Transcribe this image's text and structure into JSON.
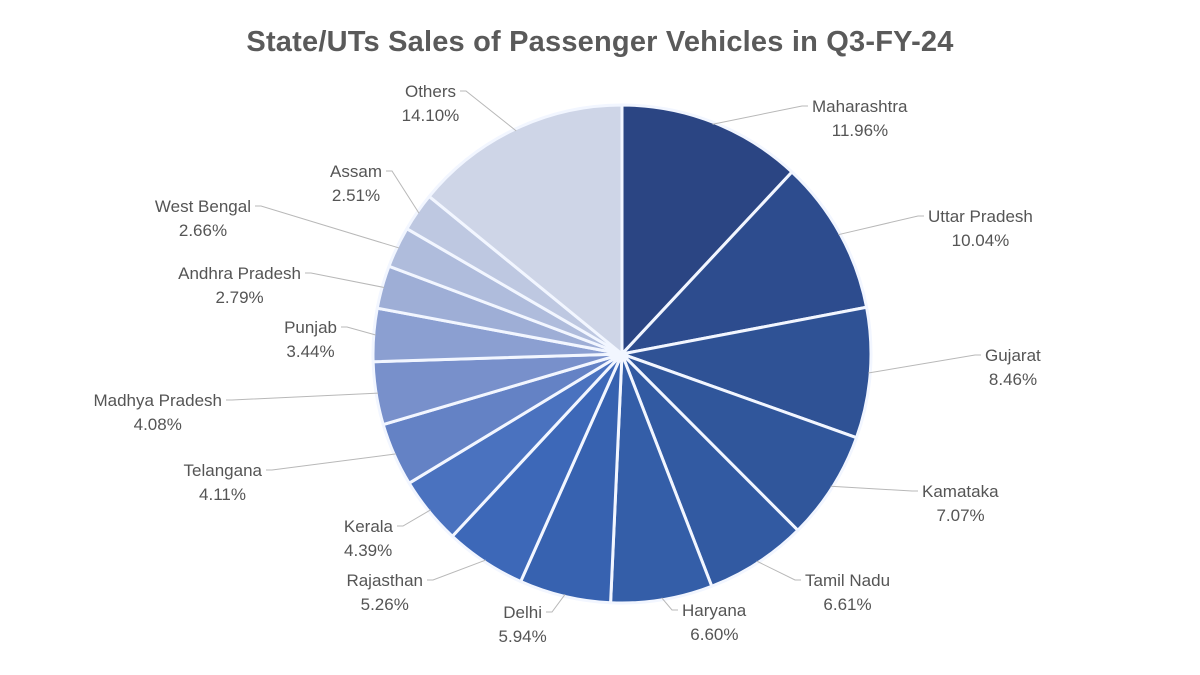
{
  "chart_data": {
    "type": "pie",
    "title": "State/UTs Sales of Passenger Vehicles in Q3-FY-24",
    "unit": "%",
    "start": "12 o'clock",
    "direction": "clockwise",
    "slices": [
      {
        "label": "Maharashtra",
        "value": 11.96,
        "value_text": "11.96%",
        "color": "#2b4583"
      },
      {
        "label": "Uttar Pradesh",
        "value": 10.04,
        "value_text": "10.04%",
        "color": "#2d4c8e"
      },
      {
        "label": "Gujarat",
        "value": 8.46,
        "value_text": "8.46%",
        "color": "#2f5295"
      },
      {
        "label": "Kamataka",
        "value": 7.07,
        "value_text": "7.07%",
        "color": "#30569b"
      },
      {
        "label": "Tamil Nadu",
        "value": 6.61,
        "value_text": "6.61%",
        "color": "#325aa2"
      },
      {
        "label": "Haryana",
        "value": 6.6,
        "value_text": "6.60%",
        "color": "#345ea8"
      },
      {
        "label": "Delhi",
        "value": 5.94,
        "value_text": "5.94%",
        "color": "#3762b0"
      },
      {
        "label": "Rajasthan",
        "value": 5.26,
        "value_text": "5.26%",
        "color": "#3d68b8"
      },
      {
        "label": "Kerala",
        "value": 4.39,
        "value_text": "4.39%",
        "color": "#4a72bf"
      },
      {
        "label": "Telangana",
        "value": 4.11,
        "value_text": "4.11%",
        "color": "#6482c5"
      },
      {
        "label": "Madhya Pradesh",
        "value": 4.08,
        "value_text": "4.08%",
        "color": "#7890cb"
      },
      {
        "label": "Punjab",
        "value": 3.44,
        "value_text": "3.44%",
        "color": "#8b9fd1"
      },
      {
        "label": "Andhra Pradesh",
        "value": 2.79,
        "value_text": "2.79%",
        "color": "#9eaed6"
      },
      {
        "label": "West Bengal",
        "value": 2.66,
        "value_text": "2.66%",
        "color": "#afbcdc"
      },
      {
        "label": "Assam",
        "value": 2.51,
        "value_text": "2.51%",
        "color": "#bec8e1"
      },
      {
        "label": "Others",
        "value": 14.1,
        "value_text": "14.10%",
        "color": "#ced5e7"
      }
    ]
  }
}
